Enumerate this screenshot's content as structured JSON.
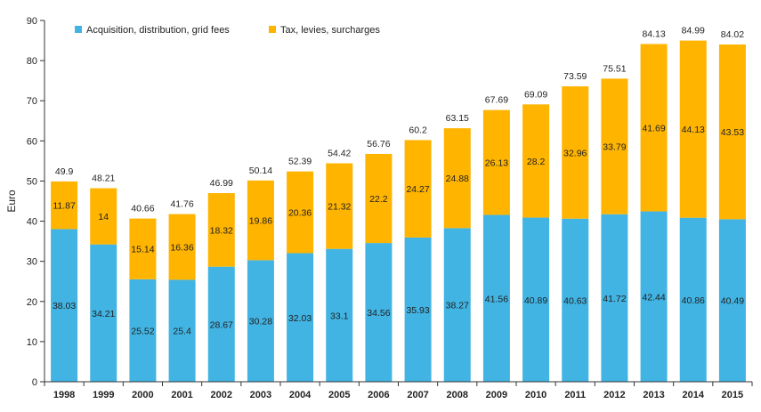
{
  "colors": {
    "series_1": "#41b4e3",
    "series_2": "#ffb400",
    "grid": "#d9d9d9",
    "axis": "#333333",
    "background": "#ffffff"
  },
  "chart_data": {
    "type": "bar",
    "stacked": true,
    "title": "",
    "xlabel": "",
    "ylabel": "Euro",
    "ylim": [
      0,
      90
    ],
    "yticks": [
      0,
      10,
      20,
      30,
      40,
      50,
      60,
      70,
      80,
      90
    ],
    "grid": false,
    "legend_position": "top-left",
    "categories": [
      "1998",
      "1999",
      "2000",
      "2001",
      "2002",
      "2003",
      "2004",
      "2005",
      "2006",
      "2007",
      "2008",
      "2009",
      "2010",
      "2011",
      "2012",
      "2013",
      "2014",
      "2015"
    ],
    "series": [
      {
        "name": "Acquisition, distribution, grid fees",
        "color": "#41b4e3",
        "values": [
          38.03,
          34.21,
          25.52,
          25.4,
          28.67,
          30.28,
          32.03,
          33.1,
          34.56,
          35.93,
          38.27,
          41.56,
          40.89,
          40.63,
          41.72,
          42.44,
          40.86,
          40.49
        ]
      },
      {
        "name": "Tax, levies, surcharges",
        "color": "#ffb400",
        "values": [
          11.87,
          14,
          15.14,
          16.36,
          18.32,
          19.86,
          20.36,
          21.32,
          22.2,
          24.27,
          24.88,
          26.13,
          28.2,
          32.96,
          33.79,
          41.69,
          44.13,
          43.53
        ]
      }
    ],
    "totals": [
      49.9,
      48.21,
      40.66,
      41.76,
      46.99,
      50.14,
      52.39,
      54.42,
      56.76,
      60.2,
      63.15,
      67.69,
      69.09,
      73.59,
      75.51,
      84.13,
      84.99,
      84.02
    ]
  }
}
